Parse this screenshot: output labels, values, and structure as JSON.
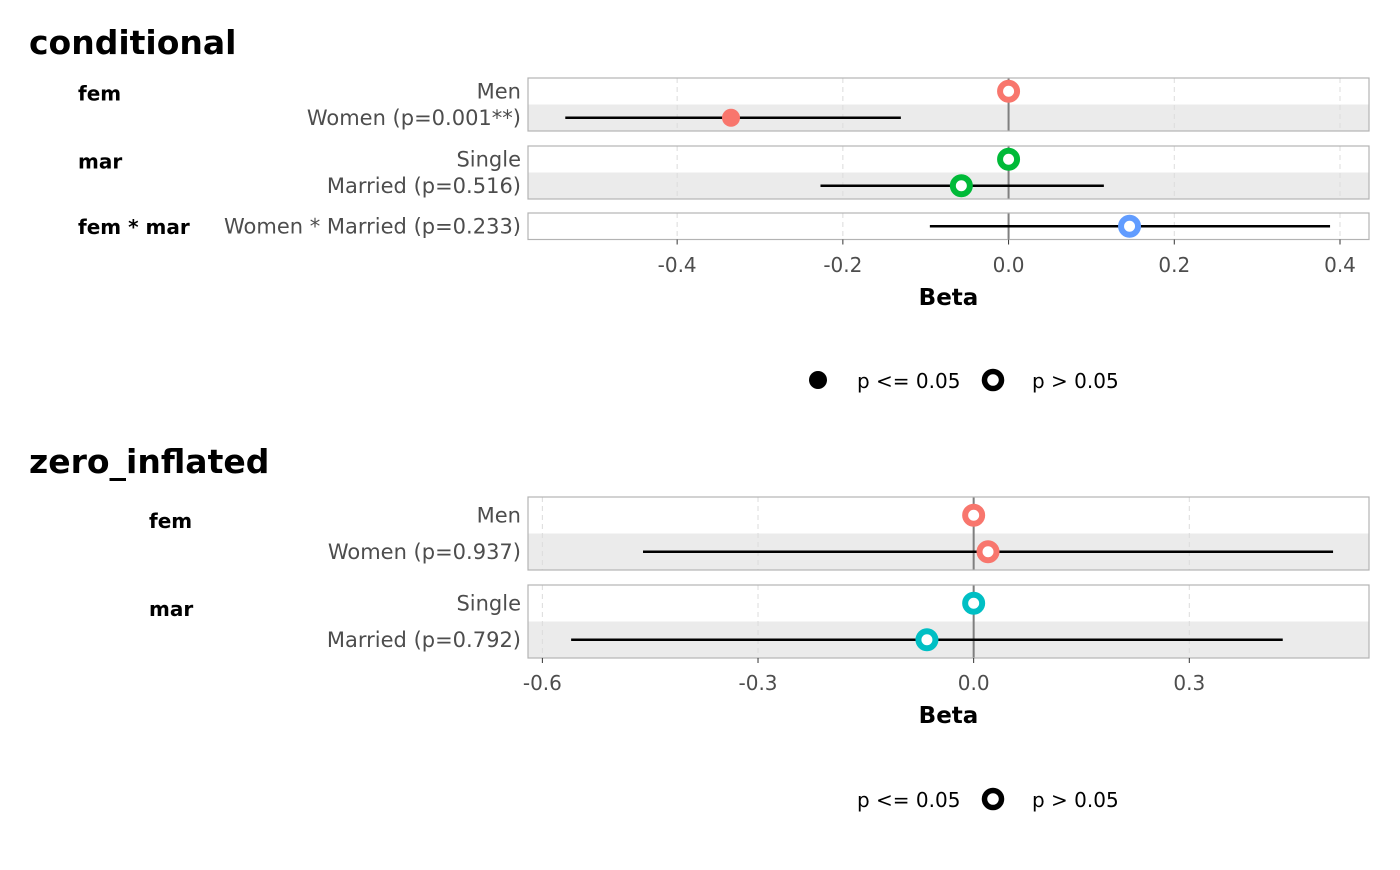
{
  "chart_data": [
    {
      "type": "scatter",
      "title": "conditional",
      "xlabel": "Beta",
      "xlim": [
        -0.58,
        0.435
      ],
      "xticks": [
        -0.4,
        -0.2,
        0.0,
        0.2,
        0.4
      ],
      "xtick_labels": [
        "-0.4",
        "-0.2",
        "0.0",
        "0.2",
        "0.4"
      ],
      "grid": true,
      "legend_position": "bottom",
      "legend": [
        {
          "label": "p <= 0.05",
          "marker": "filled"
        },
        {
          "label": "p > 0.05",
          "marker": "hollow"
        }
      ],
      "panels": [
        {
          "group": "fem",
          "rows": [
            {
              "label": "Men",
              "estimate": 0.0,
              "ci": null,
              "significant": false,
              "color": "#F8766D"
            },
            {
              "label": "Women (p=0.001**)",
              "estimate": -0.335,
              "ci": [
                -0.535,
                -0.13
              ],
              "significant": true,
              "color": "#F8766D"
            }
          ]
        },
        {
          "group": "mar",
          "rows": [
            {
              "label": "Single",
              "estimate": 0.0,
              "ci": null,
              "significant": false,
              "color": "#00BA38"
            },
            {
              "label": "Married (p=0.516)",
              "estimate": -0.057,
              "ci": [
                -0.227,
                0.115
              ],
              "significant": false,
              "color": "#00BA38"
            }
          ]
        },
        {
          "group": "fem * mar",
          "rows": [
            {
              "label": "Women * Married (p=0.233)",
              "estimate": 0.146,
              "ci": [
                -0.095,
                0.388
              ],
              "significant": false,
              "color": "#619CFF"
            }
          ]
        }
      ]
    },
    {
      "type": "scatter",
      "title": "zero_inflated",
      "xlabel": "Beta",
      "xlim": [
        -0.62,
        0.55
      ],
      "xticks": [
        -0.6,
        -0.3,
        0.0,
        0.3
      ],
      "xtick_labels": [
        "-0.6",
        "-0.3",
        "0.0",
        "0.3"
      ],
      "grid": true,
      "legend_position": "bottom",
      "legend": [
        {
          "label": "p <= 0.05",
          "marker": "filled",
          "marker_shown": false
        },
        {
          "label": "p > 0.05",
          "marker": "hollow"
        }
      ],
      "panels": [
        {
          "group": "fem",
          "rows": [
            {
              "label": "Men",
              "estimate": 0.0,
              "ci": null,
              "significant": false,
              "color": "#F8766D"
            },
            {
              "label": "Women (p=0.937)",
              "estimate": 0.02,
              "ci": [
                -0.46,
                0.5
              ],
              "significant": false,
              "color": "#F8766D"
            }
          ]
        },
        {
          "group": "mar",
          "rows": [
            {
              "label": "Single",
              "estimate": 0.0,
              "ci": null,
              "significant": false,
              "color": "#00BFC4"
            },
            {
              "label": "Married (p=0.792)",
              "estimate": -0.065,
              "ci": [
                -0.56,
                0.43
              ],
              "significant": false,
              "color": "#00BFC4"
            }
          ]
        }
      ]
    }
  ]
}
